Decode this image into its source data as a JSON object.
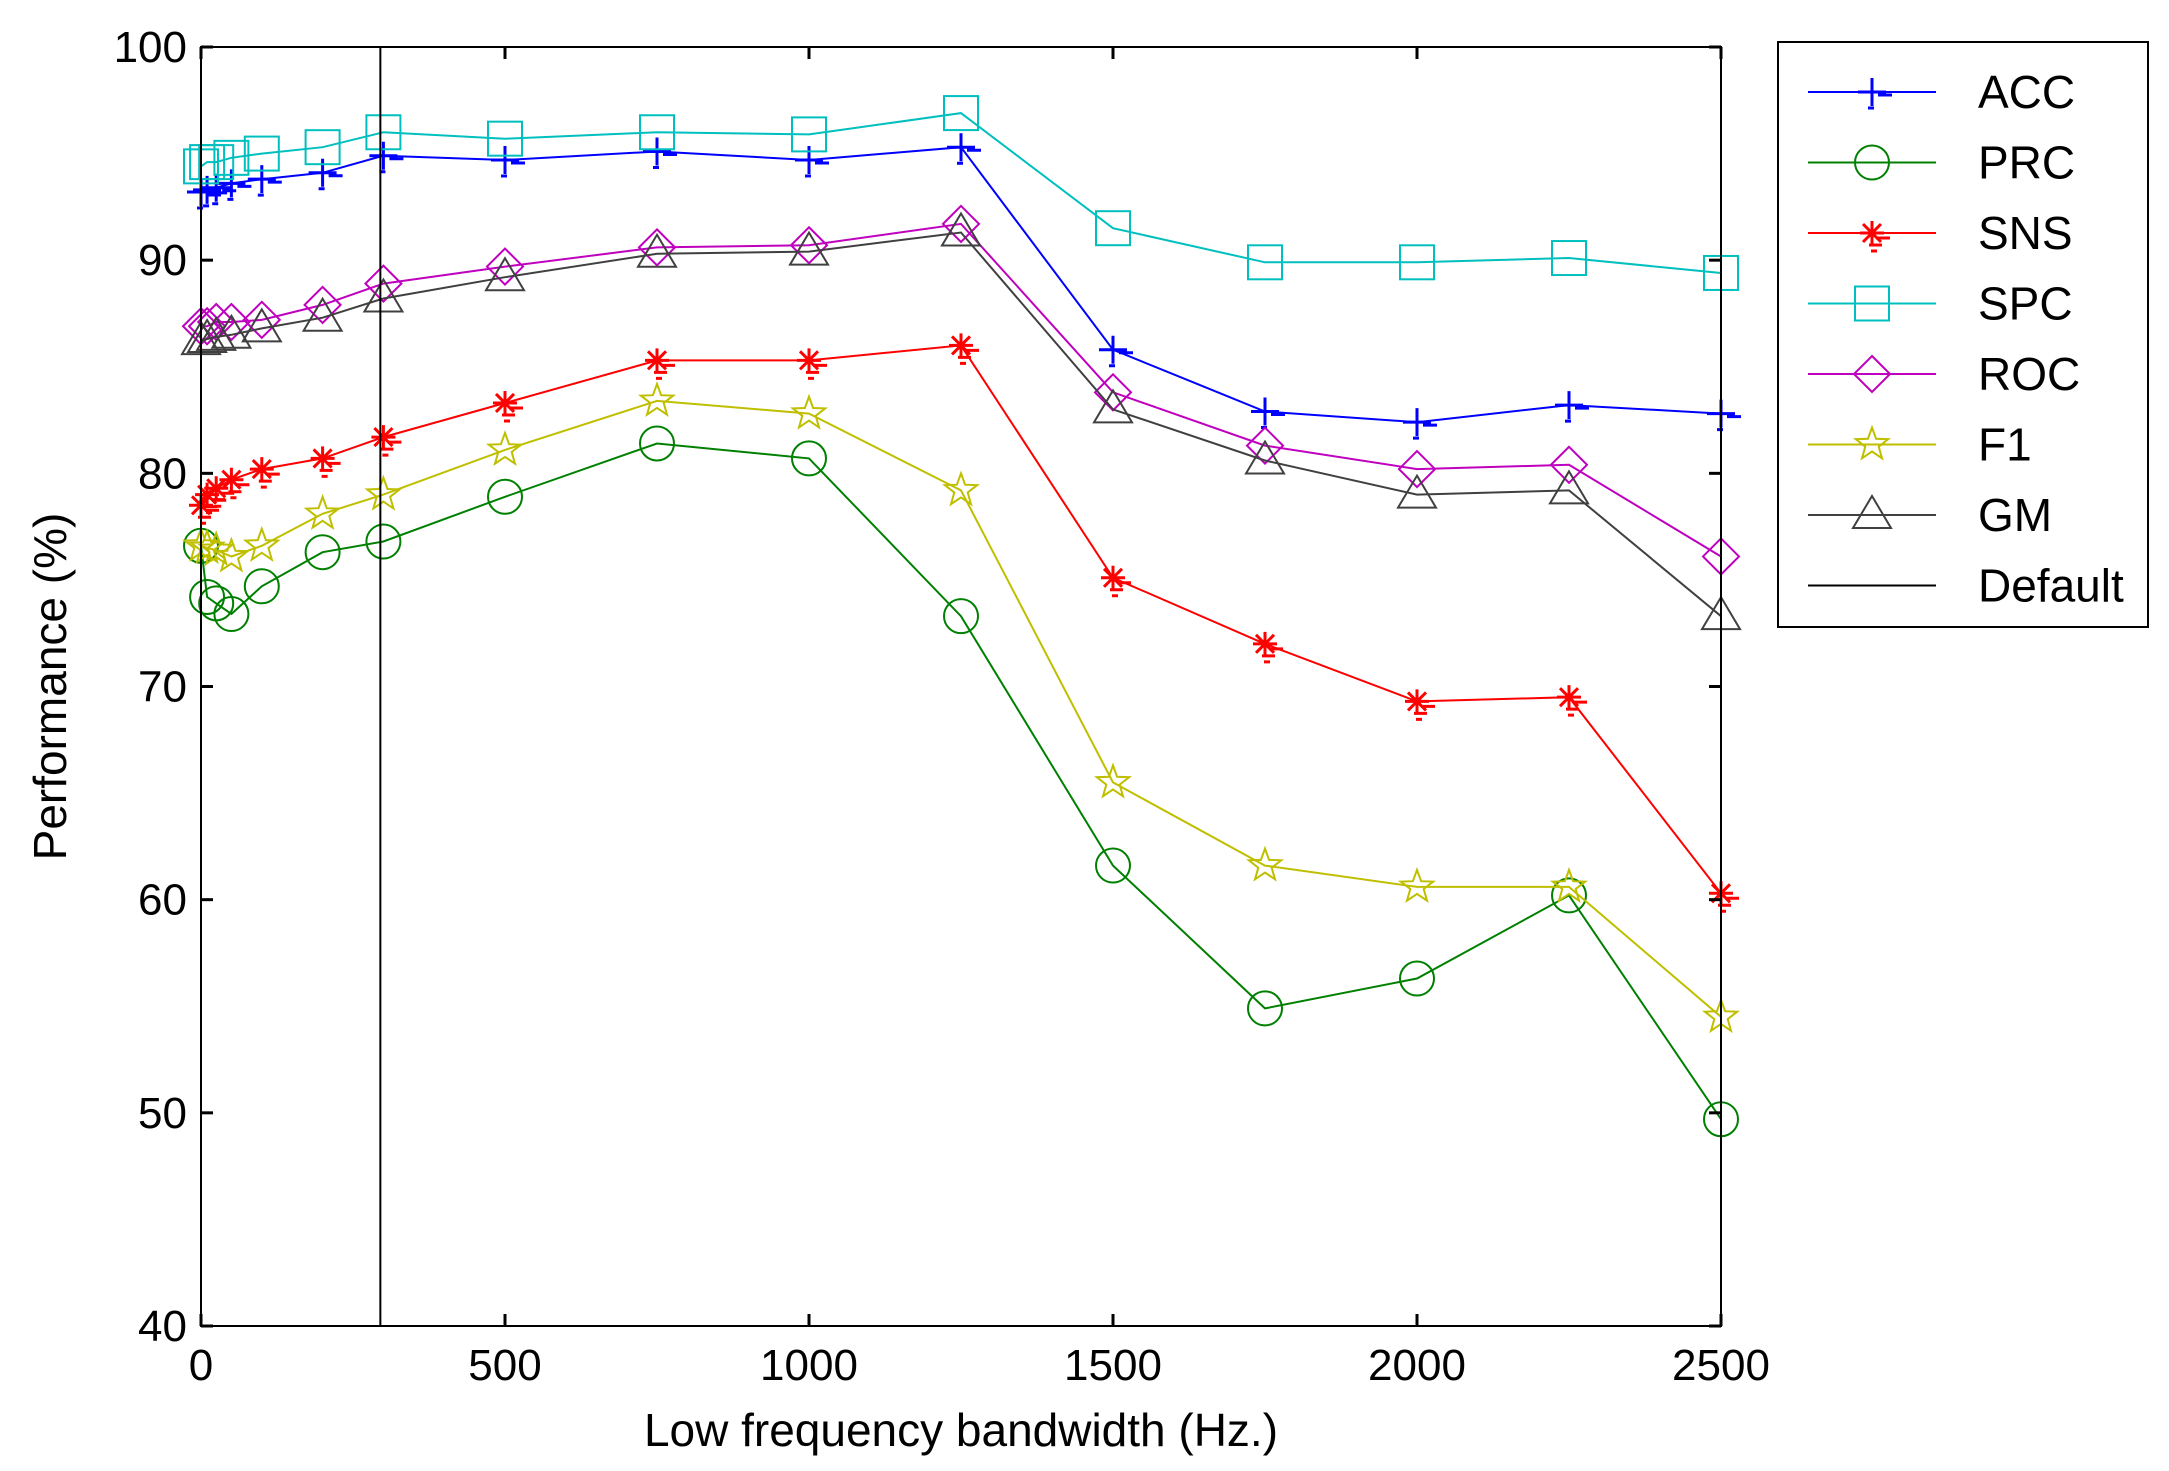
{
  "chart_data": {
    "type": "line",
    "title": "",
    "xlabel": "Low frequency bandwidth (Hz.)",
    "ylabel": "Performance (%)",
    "xlim": [
      0,
      2500
    ],
    "ylim": [
      40,
      100
    ],
    "xticks": [
      0,
      500,
      1000,
      1500,
      2000,
      2500
    ],
    "yticks": [
      40,
      50,
      60,
      70,
      80,
      90,
      100
    ],
    "grid": false,
    "legend_position": "outside-right-top",
    "x": [
      0,
      10,
      25,
      50,
      100,
      200,
      300,
      500,
      750,
      1000,
      1250,
      1500,
      1750,
      2000,
      2250,
      2500
    ],
    "series": [
      {
        "name": "ACC",
        "color": "#0000ff",
        "marker": "plus-dash",
        "values": [
          93.2,
          93.3,
          93.4,
          93.6,
          93.8,
          94.1,
          94.9,
          94.7,
          95.1,
          94.7,
          95.3,
          85.8,
          82.9,
          82.4,
          83.2,
          82.8
        ]
      },
      {
        "name": "PRC",
        "color": "#008000",
        "marker": "circle",
        "values": [
          76.6,
          74.2,
          73.9,
          73.4,
          74.7,
          76.3,
          76.8,
          78.9,
          81.4,
          80.7,
          73.3,
          61.6,
          54.9,
          56.3,
          60.2,
          49.7
        ]
      },
      {
        "name": "SNS",
        "color": "#ff0000",
        "marker": "asterisk-dash",
        "values": [
          78.5,
          79.0,
          79.3,
          79.7,
          80.2,
          80.7,
          81.7,
          83.3,
          85.3,
          85.3,
          86.0,
          75.1,
          72.0,
          69.3,
          69.5,
          60.3
        ]
      },
      {
        "name": "SPC",
        "color": "#00bfbf",
        "marker": "square",
        "values": [
          94.4,
          94.6,
          94.6,
          94.8,
          95.0,
          95.3,
          96.0,
          95.7,
          96.0,
          95.9,
          96.9,
          91.5,
          89.9,
          89.9,
          90.1,
          89.4
        ]
      },
      {
        "name": "ROC",
        "color": "#bf00bf",
        "marker": "diamond",
        "values": [
          86.9,
          86.9,
          87.1,
          87.1,
          87.2,
          87.9,
          88.9,
          89.7,
          90.6,
          90.7,
          91.7,
          83.8,
          81.3,
          80.2,
          80.4,
          76.1
        ]
      },
      {
        "name": "F1",
        "color": "#bfbf00",
        "marker": "star",
        "values": [
          76.6,
          76.5,
          76.4,
          76.1,
          76.6,
          78.1,
          79.0,
          81.1,
          83.4,
          82.8,
          79.2,
          65.5,
          61.6,
          60.6,
          60.6,
          54.5
        ]
      },
      {
        "name": "GM",
        "color": "#404040",
        "marker": "triangle",
        "values": [
          86.2,
          86.3,
          86.4,
          86.5,
          86.8,
          87.3,
          88.2,
          89.2,
          90.3,
          90.4,
          91.3,
          83.0,
          80.6,
          79.0,
          79.2,
          73.3
        ]
      }
    ],
    "reference_lines": [
      {
        "name": "Default",
        "orientation": "vertical",
        "x": 295,
        "color": "#000000"
      }
    ]
  }
}
